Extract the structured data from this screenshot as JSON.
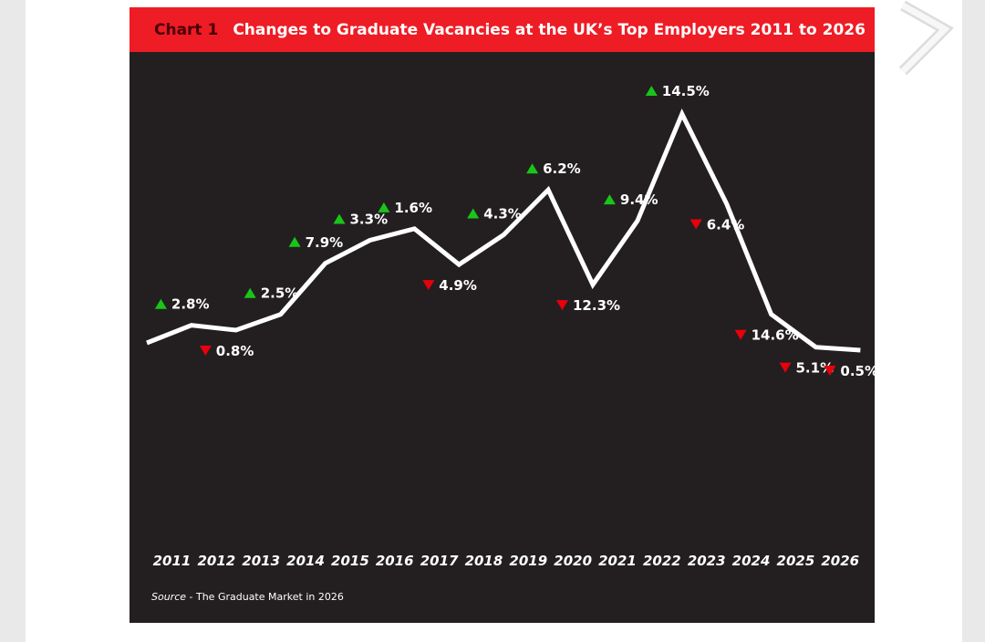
{
  "chart_data": {
    "type": "line",
    "chart_number": "Chart 1",
    "title": "Changes to Graduate Vacancies at the UK’s Top Employers 2011 to 2026",
    "source_label": "Source",
    "source_text": " - The Graduate Market in 2026",
    "x": [
      "2011",
      "2012",
      "2013",
      "2014",
      "2015",
      "2016",
      "2017",
      "2018",
      "2019",
      "2020",
      "2021",
      "2022",
      "2023",
      "2024",
      "2025",
      "2026"
    ],
    "index_values": [
      101.5,
      104.4,
      103.6,
      106.2,
      114.6,
      118.4,
      120.3,
      114.4,
      119.3,
      126.7,
      111.1,
      121.6,
      139.2,
      124.4,
      106.2,
      100.8,
      100.3
    ],
    "changes": [
      {
        "direction": "up",
        "label": "2.8%"
      },
      {
        "direction": "down",
        "label": "0.8%"
      },
      {
        "direction": "up",
        "label": "2.5%"
      },
      {
        "direction": "up",
        "label": "7.9%"
      },
      {
        "direction": "up",
        "label": "3.3%"
      },
      {
        "direction": "up",
        "label": "1.6%"
      },
      {
        "direction": "down",
        "label": "4.9%"
      },
      {
        "direction": "up",
        "label": "4.3%"
      },
      {
        "direction": "up",
        "label": "6.2%"
      },
      {
        "direction": "down",
        "label": "12.3%"
      },
      {
        "direction": "up",
        "label": "9.4%"
      },
      {
        "direction": "up",
        "label": "14.5%"
      },
      {
        "direction": "down",
        "label": "6.4%"
      },
      {
        "direction": "down",
        "label": "14.6%"
      },
      {
        "direction": "down",
        "label": "5.1%"
      },
      {
        "direction": "down",
        "label": "0.5%"
      }
    ],
    "grid": false,
    "legend": "none",
    "colors": {
      "panel_background": "#231f20",
      "header_background": "#ee1c25",
      "chart_number": "#4a0006",
      "line": "#ffffff",
      "up_marker": "#19c519",
      "down_marker": "#e8000b",
      "text": "#ffffff"
    }
  },
  "icons": {
    "next_page": "chevron-right-icon"
  }
}
